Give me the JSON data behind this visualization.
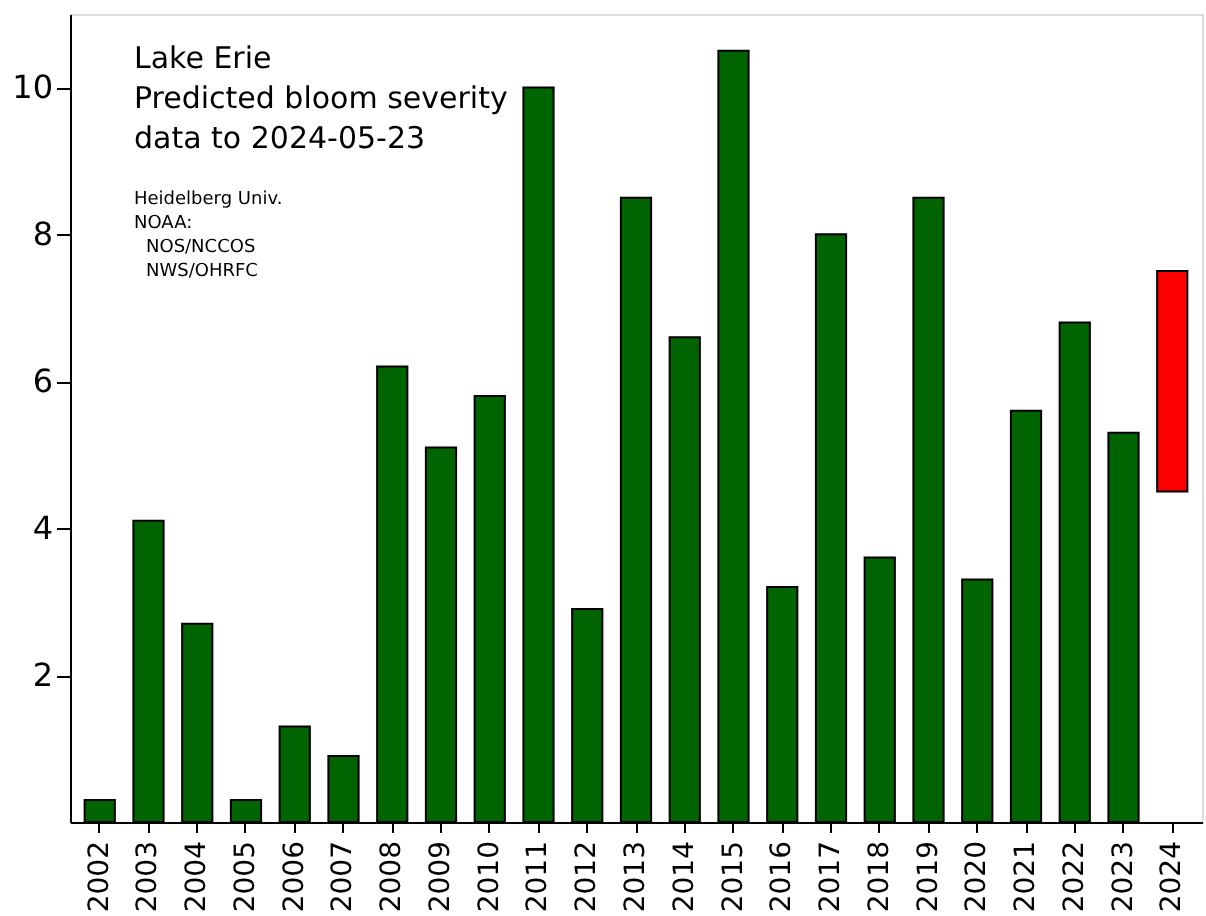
{
  "chart_data": {
    "type": "bar",
    "title": "Lake Erie",
    "subtitle": "Predicted bloom severity",
    "annotations": [
      "data to 2024-05-23",
      "Heidelberg Univ.",
      "NOAA:",
      "NOS/NCCOS",
      "NWS/OHRFC"
    ],
    "categories": [
      "2002",
      "2003",
      "2004",
      "2005",
      "2006",
      "2007",
      "2008",
      "2009",
      "2010",
      "2011",
      "2012",
      "2013",
      "2014",
      "2015",
      "2016",
      "2017",
      "2018",
      "2019",
      "2020",
      "2021",
      "2022",
      "2023",
      "2024"
    ],
    "values": [
      0.3,
      4.1,
      2.7,
      0.3,
      1.3,
      0.9,
      6.2,
      5.1,
      5.8,
      10.0,
      2.9,
      8.5,
      6.6,
      10.5,
      3.2,
      8.0,
      3.6,
      8.5,
      3.3,
      5.6,
      6.8,
      5.3,
      3.0
    ],
    "base": [
      0,
      0,
      0,
      0,
      0,
      0,
      0,
      0,
      0,
      0,
      0,
      0,
      0,
      0,
      0,
      0,
      0,
      0,
      0,
      0,
      0,
      0,
      4.5
    ],
    "colors": [
      "#006400",
      "#006400",
      "#006400",
      "#006400",
      "#006400",
      "#006400",
      "#006400",
      "#006400",
      "#006400",
      "#006400",
      "#006400",
      "#006400",
      "#006400",
      "#006400",
      "#006400",
      "#006400",
      "#006400",
      "#006400",
      "#006400",
      "#006400",
      "#006400",
      "#006400",
      "#ff0000"
    ],
    "ylim": [
      0,
      11
    ],
    "yticks": [
      2,
      4,
      6,
      8,
      10
    ],
    "grid": false
  }
}
